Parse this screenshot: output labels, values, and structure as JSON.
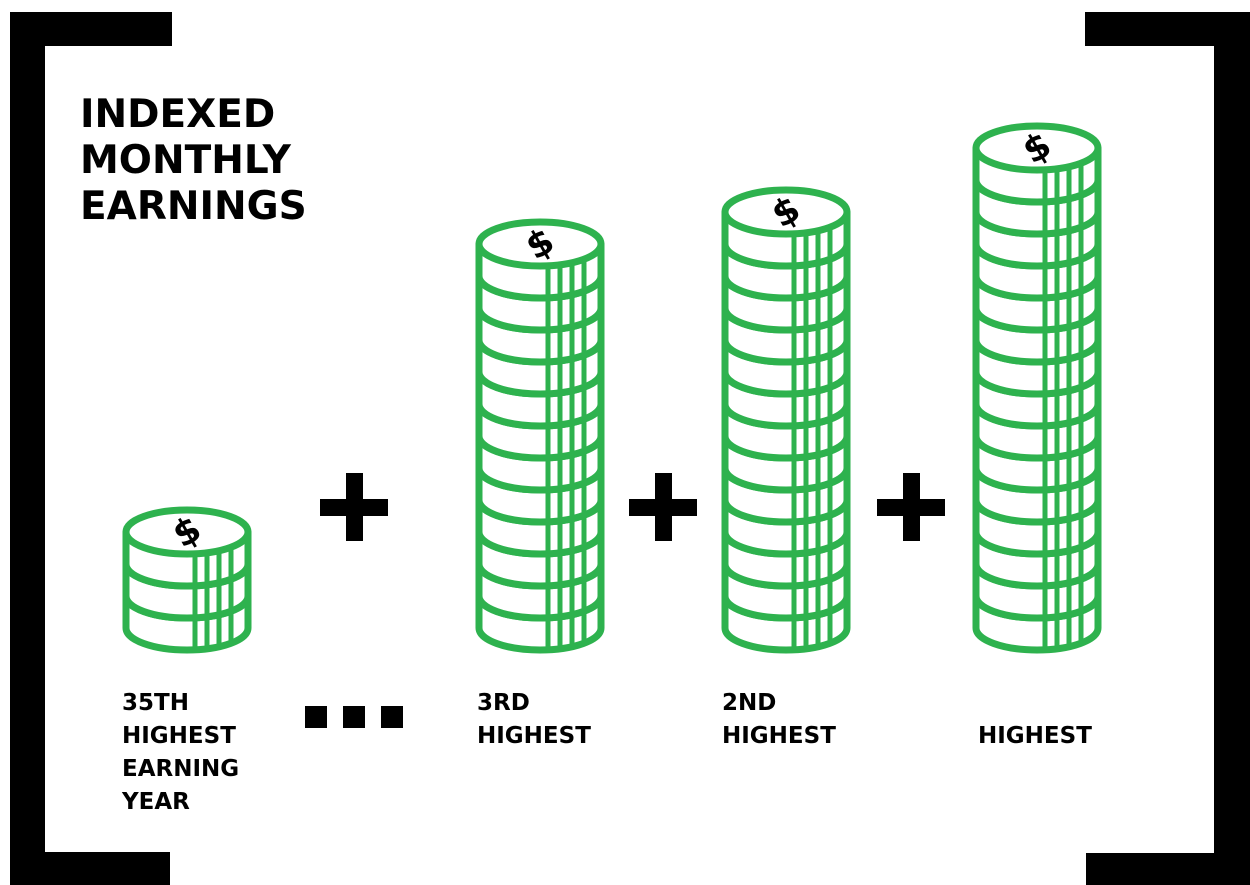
{
  "title": {
    "lines": [
      "INDEXED",
      "MONTHLY",
      "EARNINGS"
    ]
  },
  "diagram": {
    "coin_color": "#2eb24e",
    "coin_fill": "#ffffff",
    "ink_color": "#000000",
    "operator": "+",
    "ellipsis": "...",
    "items": [
      {
        "symbol": "$",
        "coins": 3,
        "label_lines": [
          "35TH",
          "HIGHEST",
          "EARNING",
          "YEAR"
        ]
      },
      {
        "symbol": "$",
        "coins": 12,
        "label_lines": [
          "3RD",
          "HIGHEST"
        ]
      },
      {
        "symbol": "$",
        "coins": 13,
        "label_lines": [
          "2ND",
          "HIGHEST"
        ]
      },
      {
        "symbol": "$",
        "coins": 15,
        "label_lines": [
          "HIGHEST"
        ]
      }
    ]
  }
}
